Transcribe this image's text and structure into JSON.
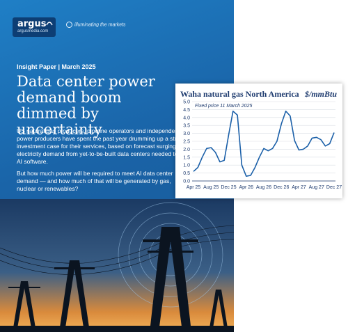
{
  "brand": {
    "name": "argus",
    "url": "argusmedia.com",
    "tagline": "illuminating the markets"
  },
  "report": {
    "kicker": "Insight Paper | March 2025",
    "headline": "Data center power demand boom dimmed by uncertainty",
    "paragraph1": "US natural gas producers, pipeline operators and independent power producers have spent the past year drumming up a strong investment case for their services, based on forecast surging electricity demand from yet-to-be-built data centers needed to run AI software.",
    "paragraph2": "But how much power will be required to meet AI data center demand — and how much of that will be generated by gas, nuclear or renewables?"
  },
  "colors": {
    "cover_blue": "#1a64a8",
    "line": "#1a5fa8",
    "chart_text": "#1d3a6e"
  },
  "chart_data": {
    "type": "line",
    "title": "Waha natural gas North America",
    "unit": "$/mmBtu",
    "annotation": "Fixed price 11 March 2025",
    "ylim": [
      0,
      5
    ],
    "yticks": [
      "0.0",
      "0.5",
      "1.0",
      "1.5",
      "2.0",
      "2.5",
      "3.0",
      "3.5",
      "4.0",
      "4.5",
      "5.0"
    ],
    "xticks": [
      "Apr 25",
      "Aug 25",
      "Dec 25",
      "Apr 26",
      "Aug 26",
      "Dec 26",
      "Apr 27",
      "Aug 27",
      "Dec 27"
    ],
    "grid": true,
    "series": [
      {
        "values": [
          0.6,
          0.85,
          1.5,
          2.05,
          2.1,
          1.8,
          1.2,
          1.3,
          2.9,
          4.4,
          4.15,
          1.0,
          0.3,
          0.35,
          0.85,
          1.5,
          2.05,
          1.9,
          2.05,
          2.5,
          3.6,
          4.4,
          4.1,
          2.55,
          1.95,
          2.0,
          2.2,
          2.7,
          2.75,
          2.6,
          2.2,
          2.35,
          3.05
        ]
      }
    ]
  }
}
